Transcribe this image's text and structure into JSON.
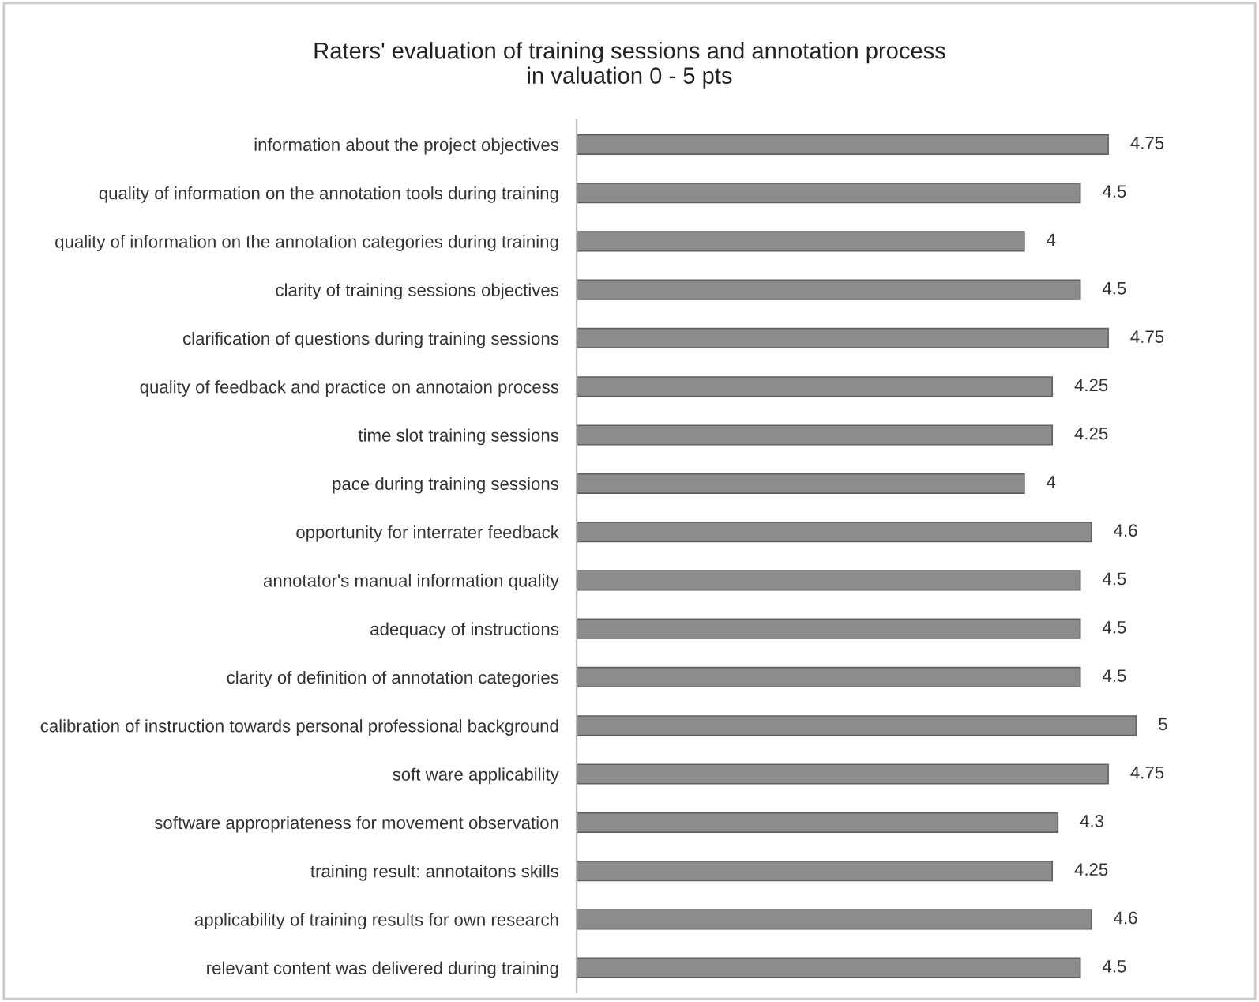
{
  "chart_data": {
    "type": "bar",
    "orientation": "horizontal",
    "title": "Raters' evaluation of training sessions and annotation process\nin valuation 0 - 5 pts",
    "categories": [
      "information about the project objectives",
      "quality of information on the annotation tools during training",
      "quality of information on the annotation categories during training",
      "clarity of training sessions objectives",
      "clarification of questions during training sessions",
      "quality of feedback and practice on annotaion process",
      "time slot training sessions",
      "pace during training sessions",
      "opportunity for interrater feedback",
      "annotator's manual information quality",
      "adequacy of instructions",
      "clarity of definition of annotation categories",
      "calibration of instruction towards personal professional background",
      "soft ware applicability",
      "software appropriateness for movement observation",
      "training result: annotaitons skills",
      "applicability of training results for own research",
      "relevant content was delivered during training"
    ],
    "values": [
      4.75,
      4.5,
      4,
      4.5,
      4.75,
      4.25,
      4.25,
      4,
      4.6,
      4.5,
      4.5,
      4.5,
      5,
      4.75,
      4.3,
      4.25,
      4.6,
      4.5
    ],
    "color": "#8c8c8c",
    "data_labels": true,
    "grid": false,
    "legend": false,
    "tick_labels": "y"
  }
}
